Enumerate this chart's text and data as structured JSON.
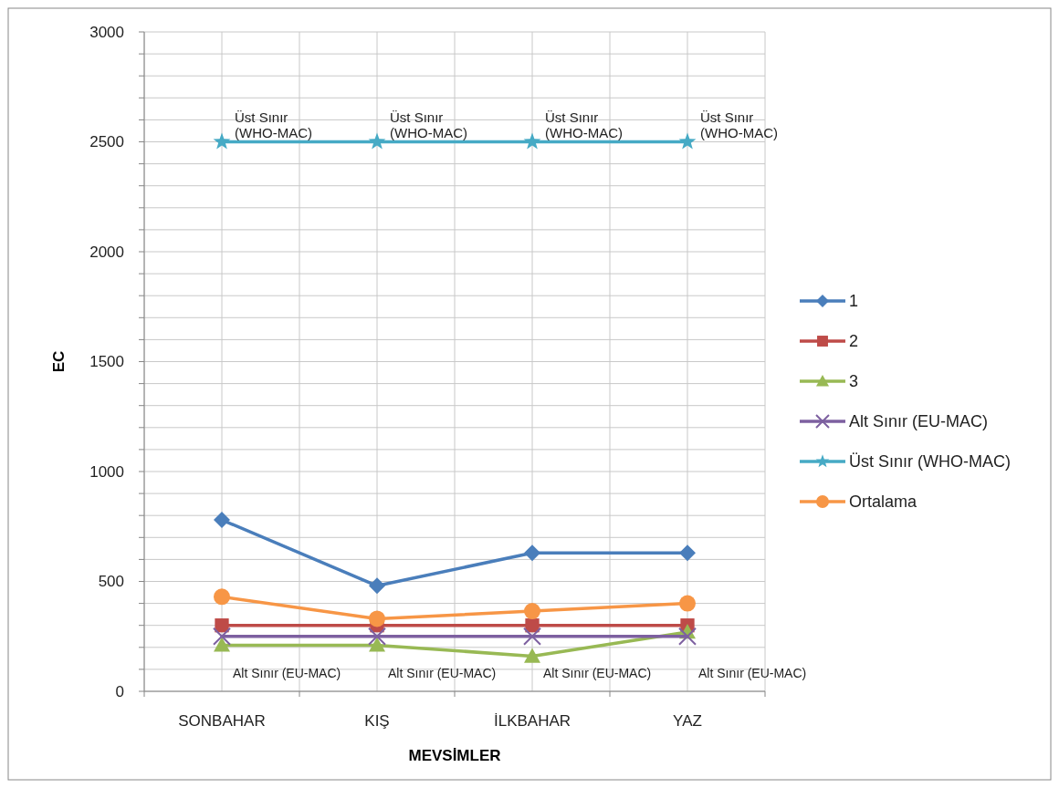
{
  "chart_data": {
    "type": "line",
    "xlabel": "MEVSİMLER",
    "ylabel": "EC",
    "categories": [
      "SONBAHAR",
      "KIŞ",
      "İLKBAHAR",
      "YAZ"
    ],
    "series": [
      {
        "name": "1",
        "color": "#4a7ebb",
        "marker": "diamond",
        "values": [
          780,
          480,
          630,
          630
        ]
      },
      {
        "name": "2",
        "color": "#be4b48",
        "marker": "square",
        "values": [
          300,
          300,
          300,
          300
        ]
      },
      {
        "name": "3",
        "color": "#98b954",
        "marker": "triangle",
        "values": [
          210,
          210,
          160,
          270
        ]
      },
      {
        "name": "Alt Sınır (EU-MAC)",
        "color": "#7d60a0",
        "marker": "cross",
        "values": [
          250,
          250,
          250,
          250
        ]
      },
      {
        "name": "Üst Sınır (WHO-MAC)",
        "color": "#46aac5",
        "marker": "star",
        "values": [
          2500,
          2500,
          2500,
          2500
        ]
      },
      {
        "name": "Ortalama",
        "color": "#f79646",
        "marker": "circle",
        "values": [
          430,
          330,
          365,
          400
        ]
      }
    ],
    "annotations": [
      {
        "text": "Alt Sınır (EU-MAC)",
        "x": "SONBAHAR",
        "y": 250
      },
      {
        "text": "Alt Sınır (EU-MAC)",
        "x": "KIŞ",
        "y": 250
      },
      {
        "text": "Alt Sınır (EU-MAC)",
        "x": "İLKBAHAR",
        "y": 250
      },
      {
        "text": "Alt Sınır (EU-MAC)",
        "x": "YAZ",
        "y": 250
      },
      {
        "text": "Üst Sınır (WHO-MAC)",
        "x": "SONBAHAR",
        "y": 2500
      },
      {
        "text": "Üst Sınır (WHO-MAC)",
        "x": "KIŞ",
        "y": 2500
      },
      {
        "text": "Üst Sınır (WHO-MAC)",
        "x": "İLKBAHAR",
        "y": 2500
      },
      {
        "text": "Üst Sınır (WHO-MAC)",
        "x": "YAZ",
        "y": 2500
      }
    ],
    "ylim": [
      0,
      3000
    ],
    "yticks": [
      0,
      {
        "value": 100,
        "label": null
      },
      {
        "value": 200,
        "label": null
      },
      {
        "value": 300,
        "label": null
      },
      {
        "value": 400,
        "label": null
      },
      500,
      {
        "value": 600,
        "label": null
      },
      {
        "value": 700,
        "label": null
      },
      {
        "value": 800,
        "label": null
      },
      {
        "value": 900,
        "label": null
      },
      1000,
      {
        "value": 1100,
        "label": null
      },
      {
        "value": 1200,
        "label": null
      },
      {
        "value": 1300,
        "label": null
      },
      {
        "value": 1400,
        "label": null
      },
      1500,
      {
        "value": 1600,
        "label": null
      },
      {
        "value": 1700,
        "label": null
      },
      {
        "value": 1800,
        "label": null
      },
      {
        "value": 1900,
        "label": null
      },
      2000,
      {
        "value": 2100,
        "label": null
      },
      {
        "value": 2200,
        "label": null
      },
      {
        "value": 2300,
        "label": null
      },
      {
        "value": 2400,
        "label": null
      },
      2500,
      {
        "value": 2600,
        "label": null
      },
      {
        "value": 2700,
        "label": null
      },
      {
        "value": 2800,
        "label": null
      },
      {
        "value": 2900,
        "label": null
      },
      3000
    ],
    "grid": true,
    "legend": "right",
    "line_style": "solid"
  }
}
